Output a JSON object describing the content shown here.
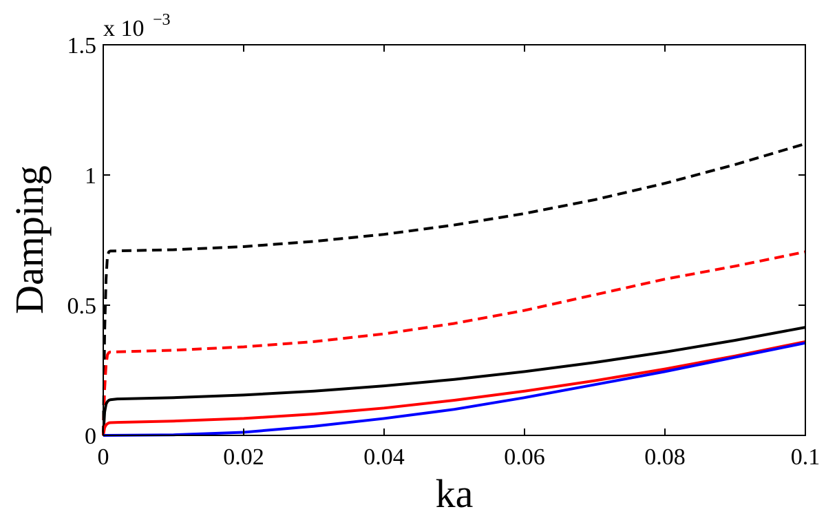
{
  "chart_data": {
    "type": "line",
    "title": "",
    "xlabel": "ka",
    "ylabel": "Damping",
    "y_exponent_prefix": "x 10",
    "y_exponent_power": "−3",
    "xlim": [
      0,
      0.1
    ],
    "ylim": [
      0,
      1.5
    ],
    "x_ticks": [
      0,
      0.02,
      0.04,
      0.06,
      0.08,
      0.1
    ],
    "x_tick_labels": [
      "0",
      "0.02",
      "0.04",
      "0.06",
      "0.08",
      "0.1"
    ],
    "y_ticks": [
      0,
      0.5,
      1,
      1.5
    ],
    "y_tick_labels": [
      "0",
      "0.5",
      "1",
      "1.5"
    ],
    "grid": false,
    "series": [
      {
        "color": "#000000",
        "style": "dashed",
        "x": [
          0,
          0.0002,
          0.0004,
          0.0006,
          0.0008,
          0.001,
          0.01,
          0.02,
          0.03,
          0.04,
          0.05,
          0.06,
          0.07,
          0.08,
          0.09,
          0.1
        ],
        "y": [
          0,
          0.4,
          0.6,
          0.69,
          0.705,
          0.708,
          0.713,
          0.725,
          0.745,
          0.772,
          0.808,
          0.852,
          0.905,
          0.968,
          1.04,
          1.12
        ]
      },
      {
        "color": "#ff0000",
        "style": "dashed",
        "x": [
          0,
          0.0002,
          0.0004,
          0.0006,
          0.0008,
          0.001,
          0.01,
          0.02,
          0.03,
          0.04,
          0.05,
          0.06,
          0.07,
          0.08,
          0.09,
          0.1
        ],
        "y": [
          0,
          0.18,
          0.27,
          0.31,
          0.318,
          0.32,
          0.327,
          0.34,
          0.36,
          0.39,
          0.43,
          0.48,
          0.54,
          0.6,
          0.65,
          0.705
        ]
      },
      {
        "color": "#000000",
        "style": "solid",
        "x": [
          0,
          0.0002,
          0.0004,
          0.0006,
          0.0008,
          0.001,
          0.002,
          0.01,
          0.02,
          0.03,
          0.04,
          0.05,
          0.06,
          0.07,
          0.08,
          0.09,
          0.1
        ],
        "y": [
          0,
          0.09,
          0.12,
          0.13,
          0.135,
          0.137,
          0.14,
          0.145,
          0.155,
          0.17,
          0.19,
          0.215,
          0.245,
          0.28,
          0.32,
          0.365,
          0.415
        ]
      },
      {
        "color": "#ff0000",
        "style": "solid",
        "x": [
          0,
          0.0002,
          0.0004,
          0.0006,
          0.0008,
          0.001,
          0.002,
          0.01,
          0.02,
          0.03,
          0.04,
          0.05,
          0.06,
          0.07,
          0.08,
          0.09,
          0.1
        ],
        "y": [
          0,
          0.03,
          0.04,
          0.045,
          0.048,
          0.049,
          0.05,
          0.055,
          0.065,
          0.082,
          0.105,
          0.135,
          0.17,
          0.21,
          0.255,
          0.305,
          0.36
        ]
      },
      {
        "color": "#0000ff",
        "style": "solid",
        "x": [
          0,
          0.01,
          0.02,
          0.03,
          0.04,
          0.05,
          0.06,
          0.07,
          0.08,
          0.09,
          0.1
        ],
        "y": [
          0,
          0.002,
          0.012,
          0.035,
          0.065,
          0.1,
          0.145,
          0.195,
          0.245,
          0.3,
          0.355
        ]
      }
    ]
  }
}
